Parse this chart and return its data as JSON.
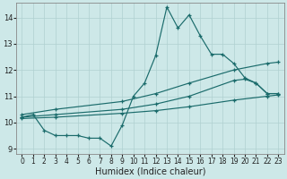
{
  "xlabel": "Humidex (Indice chaleur)",
  "xlim": [
    -0.5,
    23.5
  ],
  "ylim": [
    8.8,
    14.55
  ],
  "yticks": [
    9,
    10,
    11,
    12,
    13,
    14
  ],
  "xticks": [
    0,
    1,
    2,
    3,
    4,
    5,
    6,
    7,
    8,
    9,
    10,
    11,
    12,
    13,
    14,
    15,
    16,
    17,
    18,
    19,
    20,
    21,
    22,
    23
  ],
  "bg_color": "#cde8e8",
  "line_color": "#1a6b6b",
  "grid_color": "#b0d0d0",
  "lines": [
    {
      "x": [
        0,
        1,
        2,
        3,
        4,
        5,
        6,
        7,
        8,
        9,
        10,
        11,
        12,
        13,
        14,
        15,
        16,
        17,
        18,
        19,
        20,
        21,
        22,
        23
      ],
      "y": [
        10.2,
        10.3,
        9.7,
        9.5,
        9.5,
        9.5,
        9.4,
        9.4,
        9.1,
        9.9,
        11.0,
        11.5,
        12.55,
        14.4,
        13.6,
        14.1,
        13.3,
        12.6,
        12.6,
        12.25,
        11.7,
        11.5,
        11.1,
        11.1
      ]
    },
    {
      "x": [
        0,
        3,
        9,
        12,
        15,
        19,
        22,
        23
      ],
      "y": [
        10.3,
        10.5,
        10.8,
        11.1,
        11.5,
        12.0,
        12.25,
        12.3
      ]
    },
    {
      "x": [
        0,
        3,
        9,
        12,
        15,
        19,
        20,
        21,
        22,
        23
      ],
      "y": [
        10.2,
        10.3,
        10.5,
        10.7,
        11.0,
        11.6,
        11.65,
        11.5,
        11.1,
        11.1
      ]
    },
    {
      "x": [
        0,
        3,
        9,
        12,
        15,
        19,
        22,
        23
      ],
      "y": [
        10.15,
        10.2,
        10.35,
        10.45,
        10.6,
        10.85,
        11.0,
        11.05
      ]
    }
  ]
}
